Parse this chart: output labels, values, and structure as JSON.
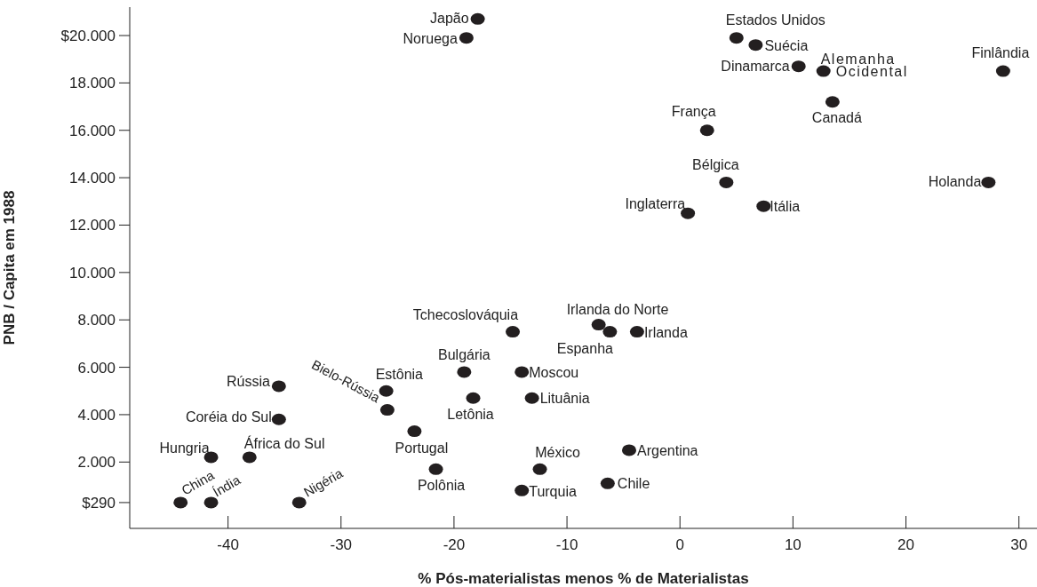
{
  "chart_data": {
    "type": "scatter",
    "xlabel": "% Pós-materialistas menos % de Materialistas",
    "ylabel": "PNB / Capita em 1988",
    "marker": "circle",
    "grid": false,
    "legend": false,
    "xlim": [
      -48.7,
      31.6
    ],
    "xticks": [
      -40,
      -30,
      -20,
      -10,
      0,
      10,
      20,
      30
    ],
    "ylim": [
      -800,
      21200
    ],
    "yticks": [
      {
        "value": 290,
        "label": "$290"
      },
      {
        "value": 2000,
        "label": "2.000"
      },
      {
        "value": 4000,
        "label": "4.000"
      },
      {
        "value": 6000,
        "label": "6.000"
      },
      {
        "value": 8000,
        "label": "8.000"
      },
      {
        "value": 10000,
        "label": "10.000"
      },
      {
        "value": 12000,
        "label": "12.000"
      },
      {
        "value": 14000,
        "label": "14.000"
      },
      {
        "value": 16000,
        "label": "16.000"
      },
      {
        "value": 18000,
        "label": "18.000"
      },
      {
        "value": 20000,
        "label": "$20.000"
      }
    ],
    "series": [
      {
        "color": "#231f20",
        "x": [
          -17.9,
          -18.9,
          5.0,
          6.7,
          10.5,
          12.7,
          28.6,
          13.5,
          2.4,
          4.1,
          27.3,
          0.7,
          7.4,
          -14.8,
          -7.2,
          -6.2,
          -3.8,
          -19.1,
          -14.0,
          -13.1,
          -18.3,
          -26.0,
          -25.9,
          -23.5,
          -35.5,
          -35.5,
          -41.5,
          -38.1,
          -44.2,
          -41.5,
          -33.7,
          -21.6,
          -12.4,
          -14.0,
          -4.5,
          -6.4
        ],
        "values": [
          20700,
          19900,
          19900,
          19600,
          18700,
          18500,
          18500,
          17200,
          16000,
          13800,
          13800,
          12500,
          12800,
          7500,
          7800,
          7500,
          7500,
          5800,
          5800,
          4700,
          4700,
          5000,
          4200,
          3300,
          5200,
          3800,
          2200,
          2200,
          290,
          290,
          290,
          1700,
          1700,
          800,
          2500,
          1100
        ]
      }
    ],
    "annotations": [
      {
        "text": "Japão",
        "x": -17.9,
        "y": 20700
      },
      {
        "text": "Noruega",
        "x": -18.9,
        "y": 19900
      },
      {
        "text": "Estados Unidos",
        "x": 5.0,
        "y": 19900
      },
      {
        "text": "Suécia",
        "x": 6.7,
        "y": 19600
      },
      {
        "text": "Dinamarca",
        "x": 10.5,
        "y": 18700
      },
      {
        "text": "Alemanha Ocidental",
        "x": 12.7,
        "y": 18500
      },
      {
        "text": "Finlândia",
        "x": 28.6,
        "y": 18500
      },
      {
        "text": "Canadá",
        "x": 13.5,
        "y": 17200
      },
      {
        "text": "França",
        "x": 2.4,
        "y": 16000
      },
      {
        "text": "Bélgica",
        "x": 4.1,
        "y": 13800
      },
      {
        "text": "Holanda",
        "x": 27.3,
        "y": 13800
      },
      {
        "text": "Inglaterra",
        "x": 0.7,
        "y": 12500
      },
      {
        "text": "Itália",
        "x": 7.4,
        "y": 12800
      },
      {
        "text": "Tchecoslováquia",
        "x": -14.8,
        "y": 7500
      },
      {
        "text": "Irlanda do Norte",
        "x": -7.2,
        "y": 7800
      },
      {
        "text": "Espanha",
        "x": -6.2,
        "y": 7500
      },
      {
        "text": "Irlanda",
        "x": -3.8,
        "y": 7500
      },
      {
        "text": "Bulgária",
        "x": -19.1,
        "y": 5800
      },
      {
        "text": "Moscou",
        "x": -14.0,
        "y": 5800
      },
      {
        "text": "Lituânia",
        "x": -13.1,
        "y": 4700
      },
      {
        "text": "Letônia",
        "x": -18.3,
        "y": 4700
      },
      {
        "text": "Estônia",
        "x": -26.0,
        "y": 5000
      },
      {
        "text": "Bielo-Rússia",
        "x": -25.9,
        "y": 4200
      },
      {
        "text": "Portugal",
        "x": -23.5,
        "y": 3300
      },
      {
        "text": "Rússia",
        "x": -35.5,
        "y": 5200
      },
      {
        "text": "Coréia do Sul",
        "x": -35.5,
        "y": 3800
      },
      {
        "text": "Hungria",
        "x": -41.5,
        "y": 2200
      },
      {
        "text": "África do Sul",
        "x": -38.1,
        "y": 2200
      },
      {
        "text": "China",
        "x": -44.2,
        "y": 290
      },
      {
        "text": "Índia",
        "x": -41.5,
        "y": 290
      },
      {
        "text": "Nigéria",
        "x": -33.7,
        "y": 290
      },
      {
        "text": "Polônia",
        "x": -21.6,
        "y": 1700
      },
      {
        "text": "México",
        "x": -12.4,
        "y": 1700
      },
      {
        "text": "Turquia",
        "x": -14.0,
        "y": 800
      },
      {
        "text": "Argentina",
        "x": -4.5,
        "y": 2500
      },
      {
        "text": "Chile",
        "x": -6.4,
        "y": 1100
      }
    ]
  }
}
